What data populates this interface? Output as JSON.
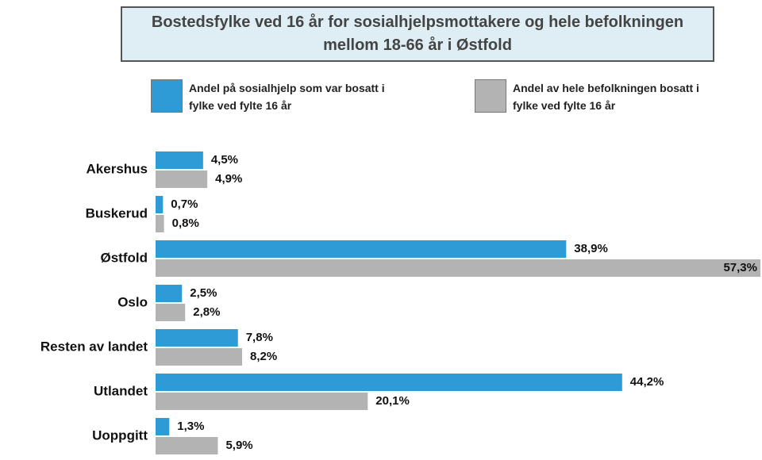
{
  "chart_data": {
    "type": "bar",
    "orientation": "horizontal",
    "title": "Bostedsfylke ved 16 år for sosialhjelpsmottakere og hele befolkningen mellom 18-66 år i Østfold",
    "categories": [
      "Akershus",
      "Buskerud",
      "Østfold",
      "Oslo",
      "Resten av landet",
      "Utlandet",
      "Uoppgitt"
    ],
    "series": [
      {
        "name": "Andel på sosialhjelp som var bosatt i fylke ved fylte 16 år",
        "color": "#2e9ad6",
        "values": [
          4.5,
          0.7,
          38.9,
          2.5,
          7.8,
          44.2,
          1.3
        ],
        "value_labels": [
          "4,5%",
          "0,7%",
          "38,9%",
          "2,5%",
          "7,8%",
          "44,2%",
          "1,3%"
        ]
      },
      {
        "name": "Andel av hele befolkningen bosatt i fylke ved fylte 16 år",
        "color": "#b3b3b3",
        "values": [
          4.9,
          0.8,
          57.3,
          2.8,
          8.2,
          20.1,
          5.9
        ],
        "value_labels": [
          "4,9%",
          "0,8%",
          "57,3%",
          "2,8%",
          "8,2%",
          "20,1%",
          "5,9%"
        ]
      }
    ]
  }
}
